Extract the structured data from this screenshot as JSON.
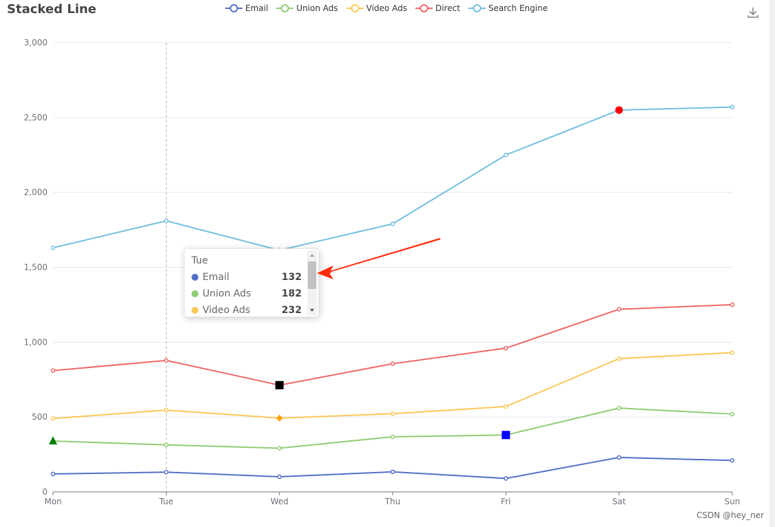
{
  "chart_data": {
    "type": "line",
    "title": "Stacked Line",
    "stacked": true,
    "categories": [
      "Mon",
      "Tue",
      "Wed",
      "Thu",
      "Fri",
      "Sat",
      "Sun"
    ],
    "ylim": [
      0,
      3000
    ],
    "yticks": [
      "0",
      "500",
      "1,000",
      "1,500",
      "2,000",
      "2,500",
      "3,000"
    ],
    "ytick_values": [
      0,
      500,
      1000,
      1500,
      2000,
      2500,
      3000
    ],
    "grid": true,
    "legend_position": "top",
    "series": [
      {
        "name": "Email",
        "color": "#5470c6",
        "values": [
          120,
          132,
          101,
          134,
          90,
          230,
          210
        ]
      },
      {
        "name": "Union Ads",
        "color": "#91cc75",
        "values": [
          220,
          182,
          191,
          234,
          290,
          330,
          310
        ]
      },
      {
        "name": "Video Ads",
        "color": "#fac858",
        "values": [
          150,
          232,
          201,
          154,
          190,
          330,
          410
        ]
      },
      {
        "name": "Direct",
        "color": "#ee6666",
        "values": [
          320,
          332,
          220,
          334,
          390,
          330,
          320
        ]
      },
      {
        "name": "Search Engine",
        "color": "#73c0de",
        "values": [
          820,
          932,
          901,
          934,
          1290,
          1330,
          1320
        ]
      }
    ],
    "highlight_markers": [
      {
        "series": "Union Ads",
        "category": "Mon",
        "symbol": "triangle",
        "color": "#008000"
      },
      {
        "series": "Direct",
        "category": "Wed",
        "symbol": "square",
        "color": "#000000"
      },
      {
        "series": "Video Ads",
        "category": "Wed",
        "symbol": "diamond",
        "color": "#ffa500"
      },
      {
        "series": "Union Ads",
        "category": "Fri",
        "symbol": "square",
        "color": "#0000ff"
      },
      {
        "series": "Search Engine",
        "category": "Sat",
        "symbol": "circle",
        "color": "#ff0000"
      }
    ],
    "axis_pointer_category": "Tue"
  },
  "tooltip": {
    "title": "Tue",
    "rows": [
      {
        "name": "Email",
        "value": "132",
        "color": "#5470c6"
      },
      {
        "name": "Union Ads",
        "value": "182",
        "color": "#91cc75"
      },
      {
        "name": "Video Ads",
        "value": "232",
        "color": "#fac858"
      }
    ]
  },
  "toolbox": {
    "icon": "download-icon"
  },
  "watermark": "CSDN @hey_ner"
}
